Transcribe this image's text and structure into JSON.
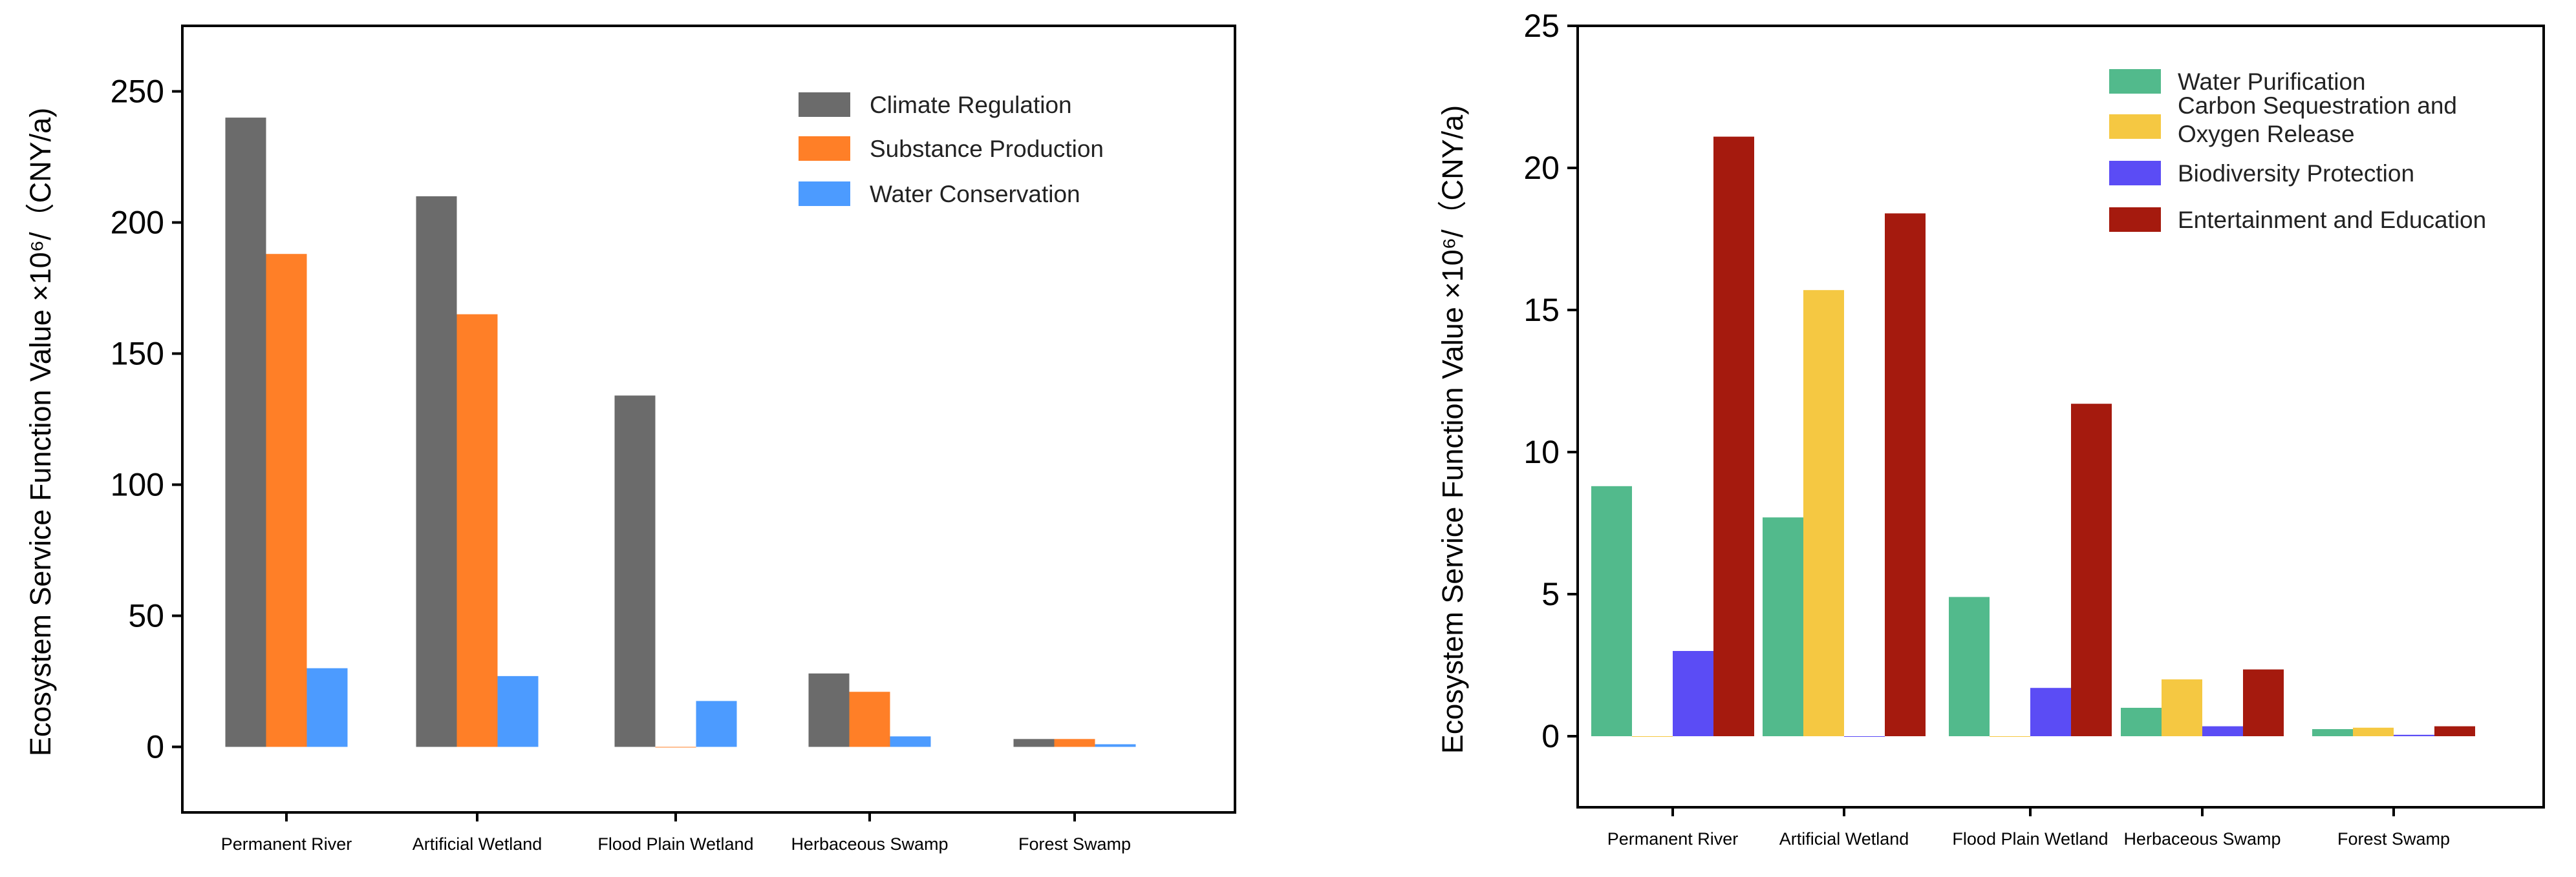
{
  "chart_data": [
    {
      "type": "bar",
      "categories": [
        "Permanent River",
        "Artificial Wetland",
        "Flood Plain Wetland",
        "Herbaceous Swamp",
        "Forest Swamp"
      ],
      "series": [
        {
          "name": "Climate Regulation",
          "color": "#6b6b6b",
          "values": [
            240,
            210,
            134,
            28,
            3
          ]
        },
        {
          "name": "Substance Production",
          "color": "#ff7f27",
          "values": [
            188,
            165,
            0,
            21,
            3
          ]
        },
        {
          "name": "Water Conservation",
          "color": "#4c9bff",
          "values": [
            30,
            27,
            17.5,
            4,
            1
          ]
        }
      ],
      "ylabel": "Ecosystem Service Function Value ×10⁶/（CNY/a)",
      "ylim": [
        -25,
        275
      ],
      "yticks": [
        "0",
        "50",
        "100",
        "150",
        "200",
        "250"
      ],
      "ytick_values": [
        0,
        50,
        100,
        150,
        200,
        250
      ],
      "legend_position": "top-right",
      "grid": false
    },
    {
      "type": "bar",
      "categories": [
        "Permanent River",
        "Artificial Wetland",
        "Flood Plain Wetland",
        "Herbaceous Swamp",
        "Forest Swamp"
      ],
      "series": [
        {
          "name": "Water Purification",
          "color": "#52ba8c",
          "values": [
            8.8,
            7.7,
            4.9,
            1.0,
            0.25
          ]
        },
        {
          "name": "Carbon Sequestration and Oxygen Release",
          "legend_lines": [
            "Carbon Sequestration and",
            "Oxygen Release"
          ],
          "color": "#f5c842",
          "values": [
            0,
            15.7,
            0,
            2.0,
            0.3
          ]
        },
        {
          "name": "Biodiversity Protection",
          "color": "#5b4cf5",
          "values": [
            3.0,
            0,
            1.7,
            0.35,
            0.05
          ]
        },
        {
          "name": "Entertainment and Education",
          "color": "#a51a0e",
          "values": [
            21.1,
            18.4,
            11.7,
            2.35,
            0.35
          ]
        }
      ],
      "ylabel": "Ecosystem Service Function Value ×10⁶/（CNY/a)",
      "ylim": [
        -2.5,
        25
      ],
      "yticks": [
        "0",
        "5",
        "10",
        "15",
        "20",
        "25"
      ],
      "ytick_values": [
        0,
        5,
        10,
        15,
        20,
        25
      ],
      "legend_position": "top-right",
      "grid": false
    }
  ]
}
